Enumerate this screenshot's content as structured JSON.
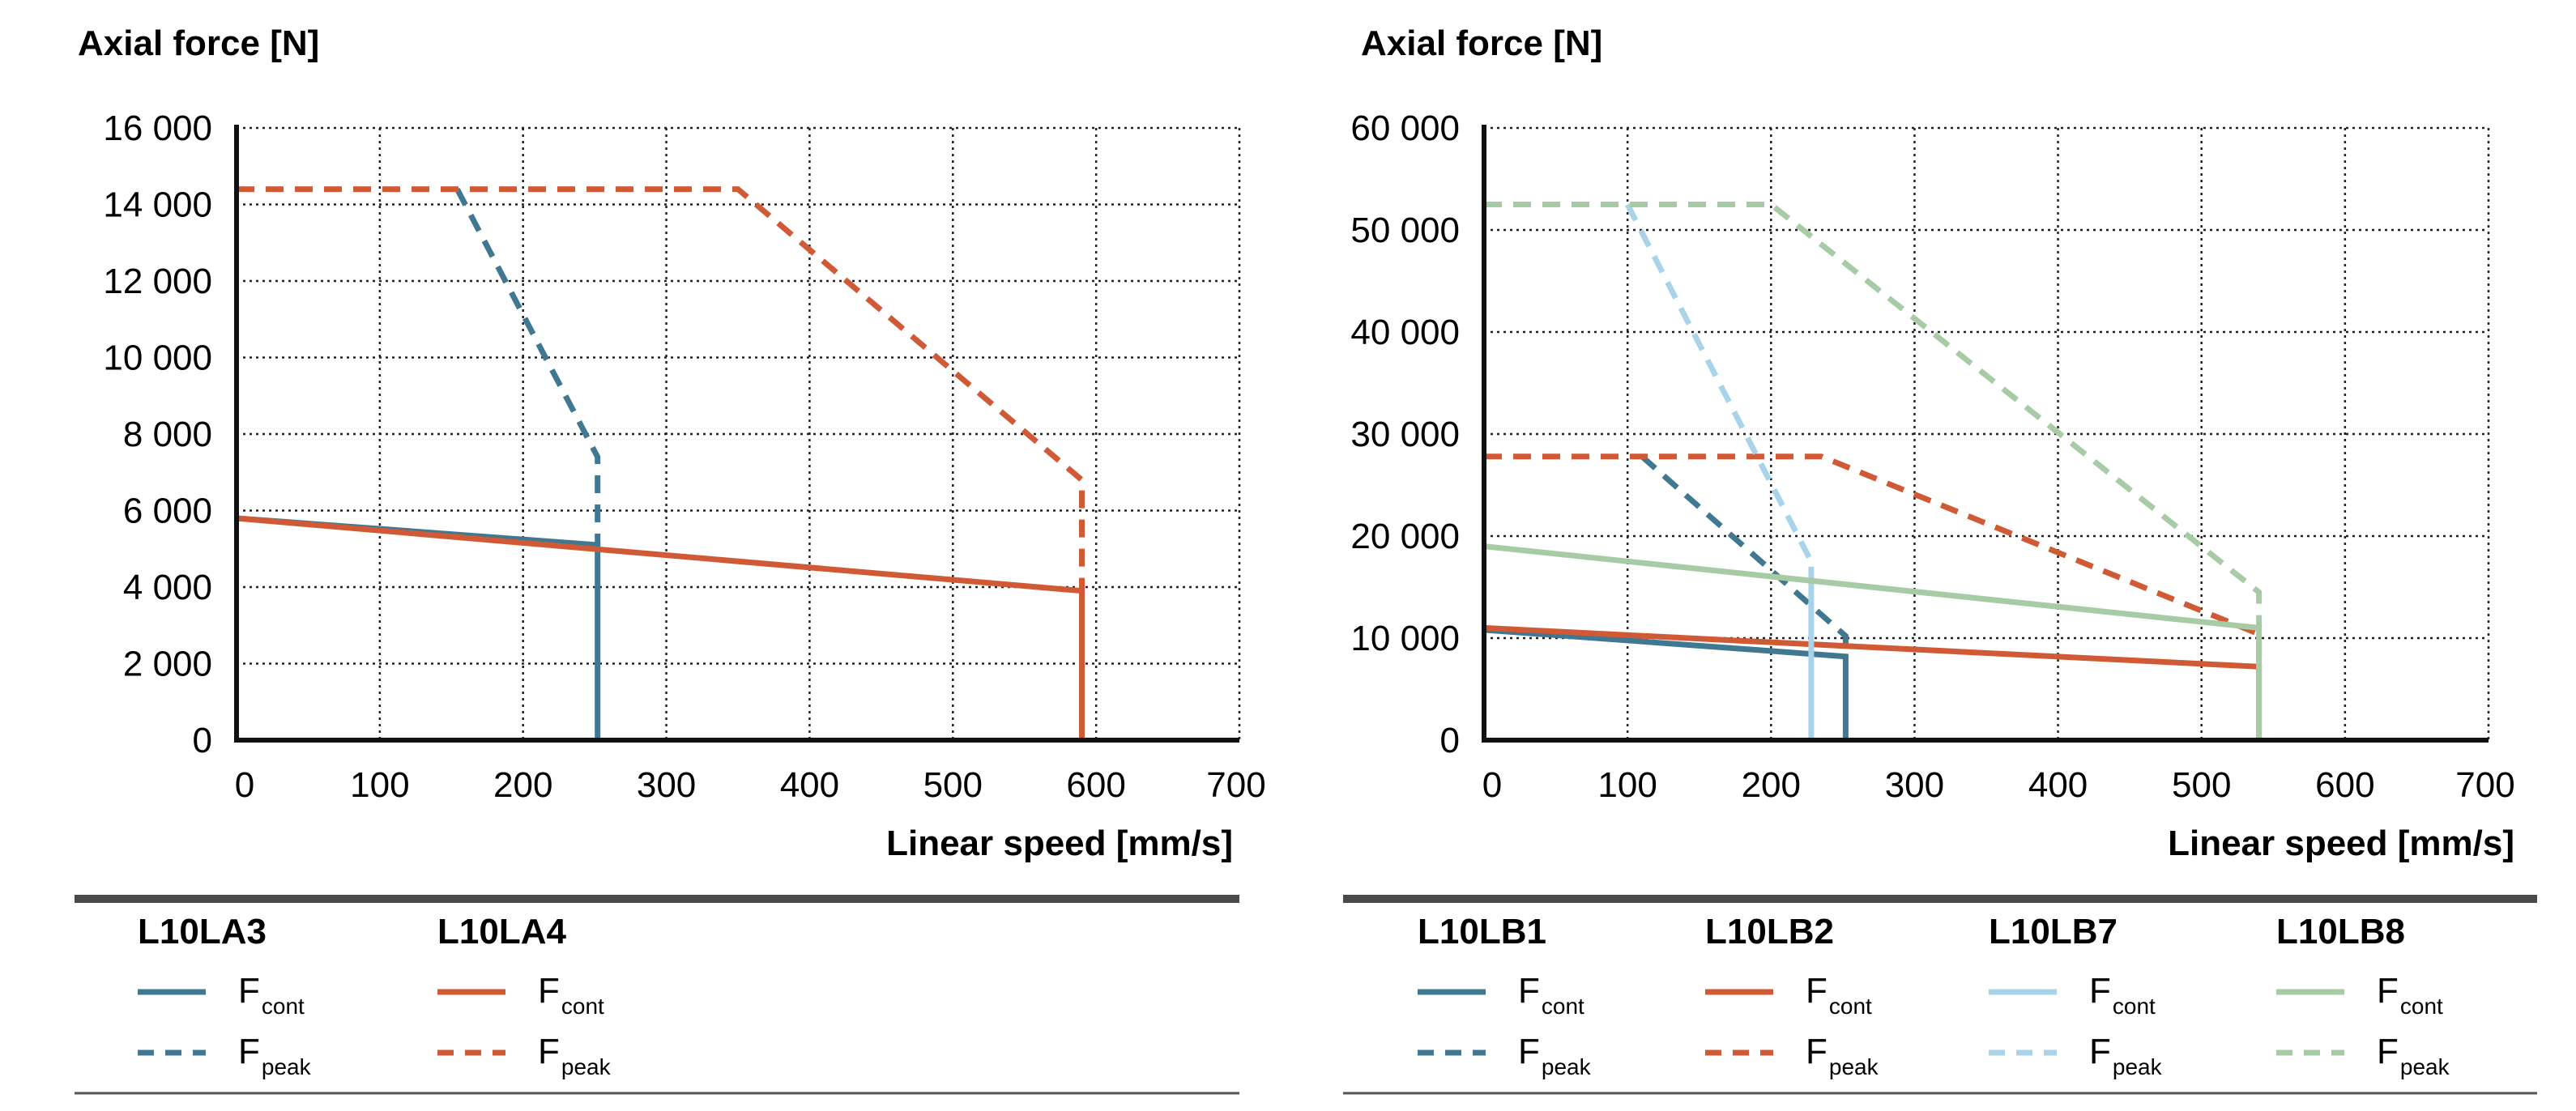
{
  "colors": {
    "axis": "#111111",
    "grid": "#222222",
    "rule_heavy": "#4a4a4a",
    "rule_light": "#555555",
    "teal": "#3f7890",
    "orange": "#d05a35",
    "lightblue": "#a9d3e8",
    "sage": "#a7cba5"
  },
  "chart_data": [
    {
      "type": "line",
      "title": "Axial force [N]",
      "xlabel": "Linear speed [mm/s]",
      "ylabel": "Axial force [N]",
      "xlim": [
        0,
        700
      ],
      "ylim": [
        0,
        16000
      ],
      "grid": true,
      "x_ticks": [
        0,
        100,
        200,
        300,
        400,
        500,
        600,
        700
      ],
      "x_tick_labels": [
        "0",
        "100",
        "200",
        "300",
        "400",
        "500",
        "600",
        "700"
      ],
      "y_ticks": [
        0,
        2000,
        4000,
        6000,
        8000,
        10000,
        12000,
        14000,
        16000
      ],
      "y_tick_labels": [
        "0",
        "2 000",
        "4 000",
        "6 000",
        "8 000",
        "10 000",
        "12 000",
        "14 000",
        "16 000"
      ],
      "series": [
        {
          "name": "L10LA3 Fcont",
          "model": "L10LA3",
          "kind": "cont",
          "color": "teal",
          "style": "solid",
          "x": [
            0,
            252,
            252
          ],
          "y": [
            5800,
            5100,
            0
          ]
        },
        {
          "name": "L10LA3 Fpeak",
          "model": "L10LA3",
          "kind": "peak",
          "color": "teal",
          "style": "dashed",
          "x": [
            154,
            252,
            252
          ],
          "y": [
            14400,
            7400,
            5100
          ]
        },
        {
          "name": "L10LA4 Fcont",
          "model": "L10LA4",
          "kind": "cont",
          "color": "orange",
          "style": "solid",
          "x": [
            0,
            590,
            590
          ],
          "y": [
            5800,
            3900,
            0
          ]
        },
        {
          "name": "L10LA4 Fpeak",
          "model": "L10LA4",
          "kind": "peak",
          "color": "orange",
          "style": "dashed",
          "x": [
            0,
            350,
            590,
            590
          ],
          "y": [
            14400,
            14400,
            6800,
            3900
          ]
        }
      ],
      "legend": {
        "models": [
          {
            "name": "L10LA3",
            "color": "teal"
          },
          {
            "name": "L10LA4",
            "color": "orange"
          }
        ],
        "f_symbol": "F",
        "cont_sub": "cont",
        "peak_sub": "peak"
      }
    },
    {
      "type": "line",
      "title": "Axial force [N]",
      "xlabel": "Linear speed [mm/s]",
      "ylabel": "Axial force [N]",
      "xlim": [
        0,
        700
      ],
      "ylim": [
        0,
        60000
      ],
      "grid": true,
      "x_ticks": [
        0,
        100,
        200,
        300,
        400,
        500,
        600,
        700
      ],
      "x_tick_labels": [
        "0",
        "100",
        "200",
        "300",
        "400",
        "500",
        "600",
        "700"
      ],
      "y_ticks": [
        0,
        10000,
        20000,
        30000,
        40000,
        50000,
        60000
      ],
      "y_tick_labels": [
        "0",
        "10 000",
        "20 000",
        "30 000",
        "40 000",
        "50 000",
        "60 000"
      ],
      "series": [
        {
          "name": "L10LB1 Fcont",
          "model": "L10LB1",
          "kind": "cont",
          "color": "teal",
          "style": "solid",
          "x": [
            0,
            252,
            252
          ],
          "y": [
            10800,
            8200,
            0
          ]
        },
        {
          "name": "L10LB1 Fpeak",
          "model": "L10LB1",
          "kind": "peak",
          "color": "teal",
          "style": "dashed",
          "x": [
            110,
            252,
            252
          ],
          "y": [
            27800,
            10200,
            8200
          ]
        },
        {
          "name": "L10LB2 Fcont",
          "model": "L10LB2",
          "kind": "cont",
          "color": "orange",
          "style": "solid",
          "x": [
            0,
            540,
            540
          ],
          "y": [
            11000,
            7200,
            0
          ]
        },
        {
          "name": "L10LB2 Fpeak",
          "model": "L10LB2",
          "kind": "peak",
          "color": "orange",
          "style": "dashed",
          "x": [
            0,
            235,
            540,
            540
          ],
          "y": [
            27800,
            27800,
            10400,
            7200
          ]
        },
        {
          "name": "L10LB7 Fcont",
          "model": "L10LB7",
          "kind": "cont",
          "color": "lightblue",
          "style": "solid",
          "x": [
            228,
            228
          ],
          "y": [
            17000,
            0
          ]
        },
        {
          "name": "L10LB7 Fpeak",
          "model": "L10LB7",
          "kind": "peak",
          "color": "lightblue",
          "style": "dashed",
          "x": [
            100,
            228,
            228
          ],
          "y": [
            52500,
            17500,
            17000
          ]
        },
        {
          "name": "L10LB8 Fcont",
          "model": "L10LB8",
          "kind": "cont",
          "color": "sage",
          "style": "solid",
          "x": [
            0,
            540,
            540
          ],
          "y": [
            19000,
            11000,
            0
          ]
        },
        {
          "name": "L10LB8 Fpeak",
          "model": "L10LB8",
          "kind": "peak",
          "color": "sage",
          "style": "dashed",
          "x": [
            0,
            200,
            540,
            540
          ],
          "y": [
            52500,
            52500,
            14500,
            11000
          ]
        }
      ],
      "legend": {
        "models": [
          {
            "name": "L10LB1",
            "color": "teal"
          },
          {
            "name": "L10LB2",
            "color": "orange"
          },
          {
            "name": "L10LB7",
            "color": "lightblue"
          },
          {
            "name": "L10LB8",
            "color": "sage"
          }
        ],
        "f_symbol": "F",
        "cont_sub": "cont",
        "peak_sub": "peak"
      }
    }
  ]
}
